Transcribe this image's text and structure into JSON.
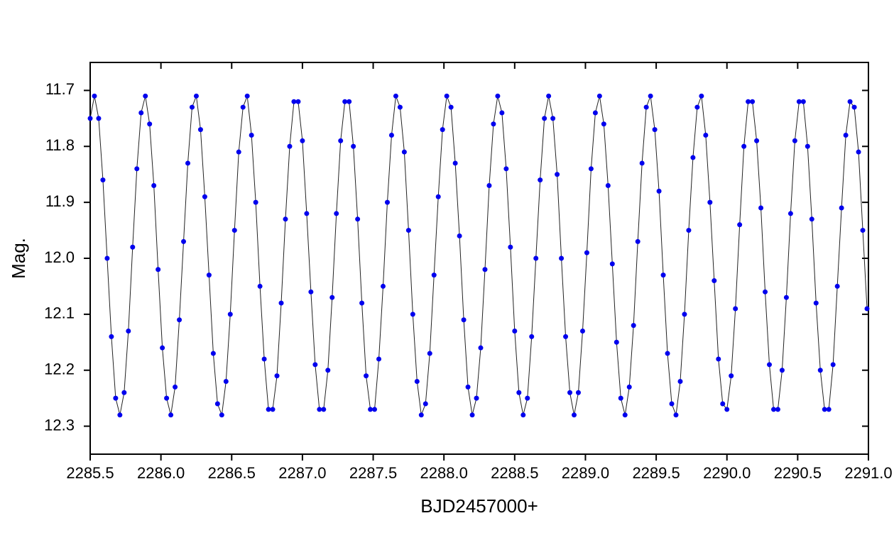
{
  "chart_data": {
    "type": "scatter-line",
    "xlabel": "BJD2457000+",
    "ylabel": "Mag.",
    "color": "#0000ee",
    "line_color": "#222222",
    "xlim": [
      2285.5,
      2291.0
    ],
    "xticks": [
      2285.5,
      {
        "value": 2286,
        "label": "2286.0"
      },
      2286.5,
      {
        "value": 2287,
        "label": "2287.0"
      },
      2287.5,
      {
        "value": 2288,
        "label": "2288.0"
      },
      2288.5,
      {
        "value": 2289,
        "label": "2289.0"
      },
      2289.5,
      {
        "value": 2290,
        "label": "2290.0"
      },
      2290.5,
      {
        "value": 2291,
        "label": "2291.0"
      }
    ],
    "ylim": [
      11.65,
      12.35
    ],
    "y_inverted": true,
    "yticks": [
      11.7,
      11.8,
      11.9,
      {
        "value": 12,
        "label": "12.0"
      },
      12.1,
      12.2,
      12.3
    ],
    "x": [
      2285.5,
      2285.53,
      2285.56,
      2285.59,
      2285.62,
      2285.65,
      2285.68,
      2285.71,
      2285.74,
      2285.77,
      2285.8,
      2285.83,
      2285.86,
      2285.89,
      2285.92,
      2285.95,
      2285.98,
      2286.01,
      2286.04,
      2286.07,
      2286.1,
      2286.13,
      2286.16,
      2286.19,
      2286.22,
      2286.25,
      2286.28,
      2286.31,
      2286.34,
      2286.37,
      2286.4,
      2286.43,
      2286.46,
      2286.49,
      2286.52,
      2286.55,
      2286.58,
      2286.61,
      2286.64,
      2286.67,
      2286.7,
      2286.73,
      2286.76,
      2286.79,
      2286.82,
      2286.85,
      2286.88,
      2286.91,
      2286.94,
      2286.97,
      2287.0,
      2287.03,
      2287.06,
      2287.09,
      2287.12,
      2287.15,
      2287.18,
      2287.21,
      2287.24,
      2287.27,
      2287.3,
      2287.33,
      2287.36,
      2287.39,
      2287.42,
      2287.45,
      2287.48,
      2287.51,
      2287.54,
      2287.57,
      2287.6,
      2287.63,
      2287.66,
      2287.69,
      2287.72,
      2287.75,
      2287.78,
      2287.81,
      2287.84,
      2287.87,
      2287.9,
      2287.93,
      2287.96,
      2287.99,
      2288.02,
      2288.05,
      2288.08,
      2288.11,
      2288.14,
      2288.17,
      2288.2,
      2288.23,
      2288.26,
      2288.29,
      2288.32,
      2288.35,
      2288.38,
      2288.41,
      2288.44,
      2288.47,
      2288.5,
      2288.53,
      2288.56,
      2288.59,
      2288.62,
      2288.65,
      2288.68,
      2288.71,
      2288.74,
      2288.77,
      2288.8,
      2288.83,
      2288.86,
      2288.89,
      2288.92,
      2288.95,
      2288.98,
      2289.01,
      2289.04,
      2289.07,
      2289.1,
      2289.13,
      2289.16,
      2289.19,
      2289.22,
      2289.25,
      2289.28,
      2289.31,
      2289.34,
      2289.37,
      2289.4,
      2289.43,
      2289.46,
      2289.49,
      2289.52,
      2289.55,
      2289.58,
      2289.61,
      2289.64,
      2289.67,
      2289.7,
      2289.73,
      2289.76,
      2289.79,
      2289.82,
      2289.85,
      2289.88,
      2289.91,
      2289.94,
      2289.97,
      2290.0,
      2290.03,
      2290.06,
      2290.09,
      2290.12,
      2290.15,
      2290.18,
      2290.21,
      2290.24,
      2290.27,
      2290.3,
      2290.33,
      2290.36,
      2290.39,
      2290.42,
      2290.45,
      2290.48,
      2290.51,
      2290.54,
      2290.57,
      2290.6,
      2290.63,
      2290.66,
      2290.69,
      2290.72,
      2290.75,
      2290.78,
      2290.81,
      2290.84,
      2290.87,
      2290.9,
      2290.93,
      2290.96,
      2290.99
    ],
    "values": [
      11.75,
      11.71,
      11.75,
      11.86,
      12.0,
      12.14,
      12.25,
      12.28,
      12.24,
      12.13,
      11.98,
      11.84,
      11.74,
      11.71,
      11.76,
      11.87,
      12.02,
      12.16,
      12.25,
      12.28,
      12.23,
      12.11,
      11.97,
      11.83,
      11.73,
      11.71,
      11.77,
      11.89,
      12.03,
      12.17,
      12.26,
      12.28,
      12.22,
      12.1,
      11.95,
      11.81,
      11.73,
      11.71,
      11.78,
      11.9,
      12.05,
      12.18,
      12.27,
      12.27,
      12.21,
      12.08,
      11.93,
      11.8,
      11.72,
      11.72,
      11.79,
      11.92,
      12.06,
      12.19,
      12.27,
      12.27,
      12.2,
      12.07,
      11.92,
      11.79,
      11.72,
      11.72,
      11.8,
      11.93,
      12.08,
      12.21,
      12.27,
      12.27,
      12.18,
      12.05,
      11.9,
      11.78,
      11.71,
      11.73,
      11.81,
      11.95,
      12.1,
      12.22,
      12.28,
      12.26,
      12.17,
      12.03,
      11.89,
      11.77,
      11.71,
      11.73,
      11.83,
      11.96,
      12.11,
      12.23,
      12.28,
      12.25,
      12.16,
      12.02,
      11.87,
      11.76,
      11.71,
      11.74,
      11.84,
      11.98,
      12.13,
      12.24,
      12.28,
      12.25,
      12.14,
      12.0,
      11.86,
      11.75,
      11.71,
      11.75,
      11.85,
      12.0,
      12.14,
      12.24,
      12.28,
      12.24,
      12.13,
      11.99,
      11.84,
      11.74,
      11.71,
      11.76,
      11.87,
      12.01,
      12.15,
      12.25,
      12.28,
      12.23,
      12.12,
      11.97,
      11.83,
      11.73,
      11.71,
      11.77,
      11.88,
      12.03,
      12.17,
      12.26,
      12.28,
      12.22,
      12.1,
      11.95,
      11.82,
      11.73,
      11.71,
      11.78,
      11.9,
      12.04,
      12.18,
      12.26,
      12.27,
      12.21,
      12.09,
      11.94,
      11.8,
      11.72,
      11.72,
      11.79,
      11.91,
      12.06,
      12.19,
      12.27,
      12.27,
      12.2,
      12.07,
      11.92,
      11.79,
      11.72,
      11.72,
      11.8,
      11.93,
      12.08,
      12.2,
      12.27,
      12.27,
      12.19,
      12.05,
      11.91,
      11.78,
      11.72,
      11.73,
      11.81,
      11.95,
      12.09
    ]
  }
}
